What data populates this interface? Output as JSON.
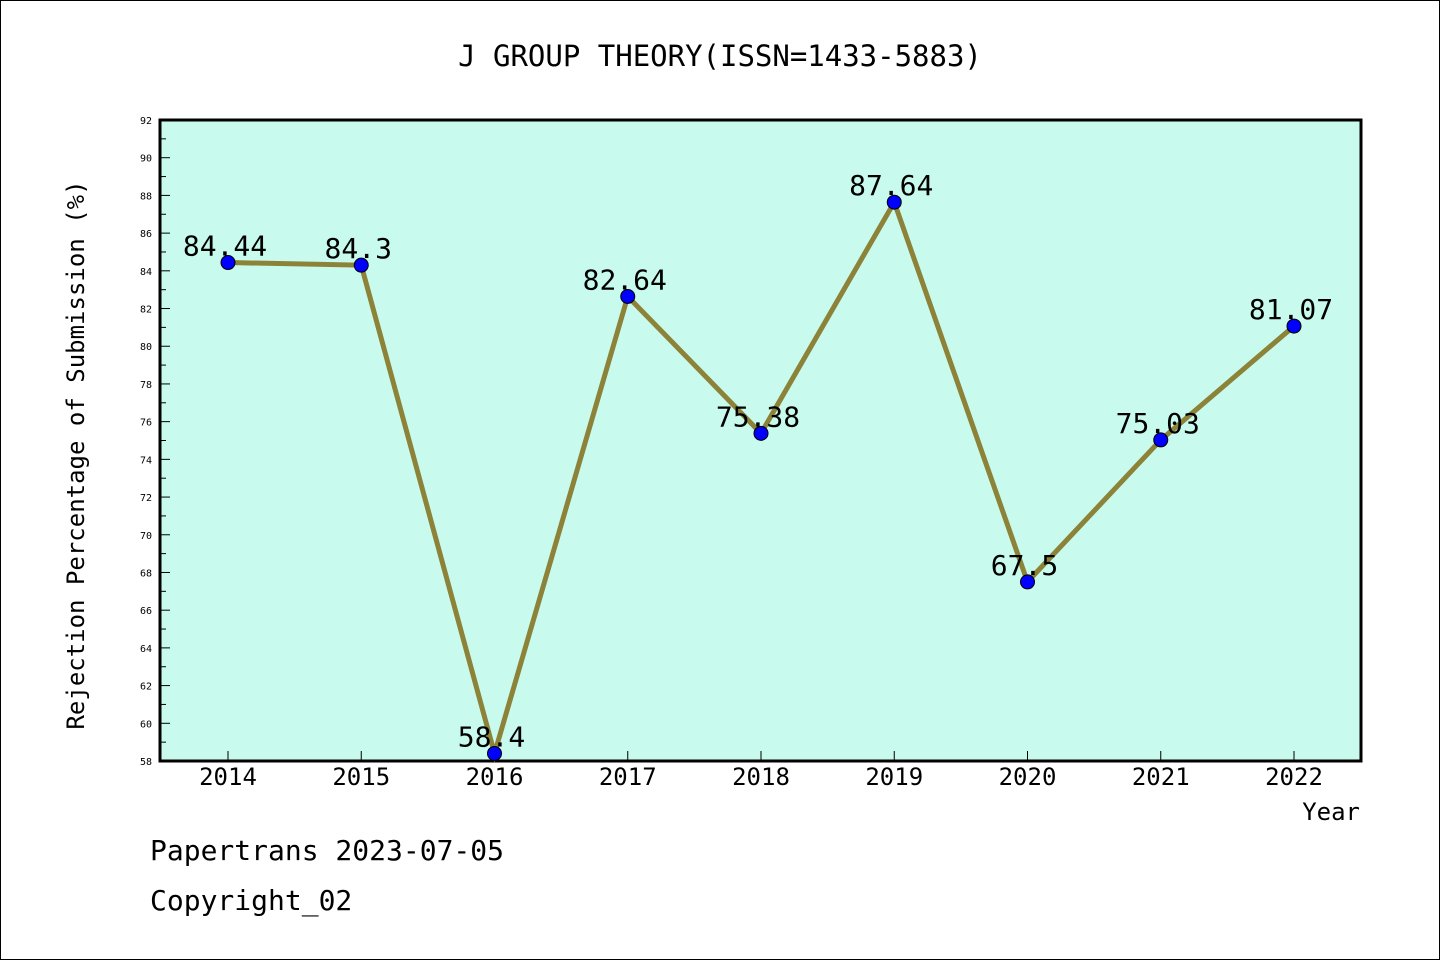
{
  "chart_data": {
    "type": "line",
    "title": "J GROUP THEORY(ISSN=1433-5883)",
    "xlabel": "Year",
    "ylabel": "Rejection Percentage of Submission (%)",
    "categories": [
      "2014",
      "2015",
      "2016",
      "2017",
      "2018",
      "2019",
      "2020",
      "2021",
      "2022"
    ],
    "values": [
      84.44,
      84.3,
      58.4,
      82.64,
      75.38,
      87.64,
      67.5,
      75.03,
      81.07
    ],
    "data_labels": [
      "84.44",
      "84.3",
      "58.4",
      "82.64",
      "75.38",
      "87.64",
      "67.5",
      "75.03",
      "81.07"
    ],
    "ylim": [
      58,
      92
    ],
    "yticks": [
      "58",
      "60",
      "62",
      "64",
      "66",
      "68",
      "70",
      "72",
      "74",
      "76",
      "78",
      "80",
      "82",
      "84",
      "86",
      "88",
      "90",
      "92"
    ],
    "grid": false,
    "legend": "none",
    "colors": {
      "plot_background": "#c8fbee",
      "line": "#8c8238",
      "marker": "#0000ff"
    }
  },
  "footer": {
    "line1": "Papertrans 2023-07-05",
    "line2": "Copyright_02"
  }
}
